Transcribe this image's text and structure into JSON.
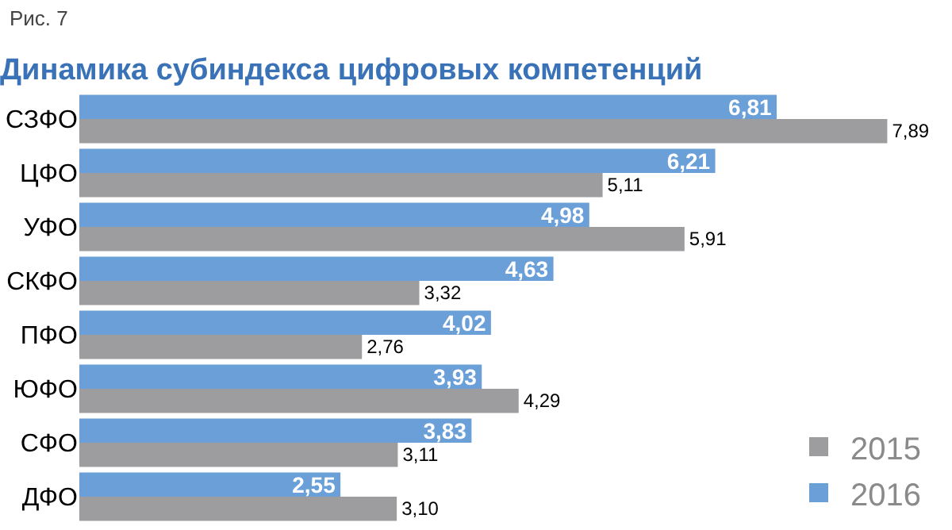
{
  "chart_data": {
    "type": "bar",
    "orientation": "horizontal",
    "title": "Динамика субиндекса цифровых компетенций",
    "annotations": [
      "Рис. 7"
    ],
    "categories": [
      "СЗФО",
      "ЦФО",
      "УФО",
      "СКФО",
      "ПФО",
      "ЮФО",
      "СФО",
      "ДФО"
    ],
    "series": [
      {
        "name": "2016",
        "color": "#6a9fd8",
        "values": [
          6.81,
          6.21,
          4.98,
          4.63,
          4.02,
          3.93,
          3.83,
          2.55
        ],
        "value_labels": [
          "6,81",
          "6,21",
          "4,98",
          "4,63",
          "4,02",
          "3,93",
          "3,83",
          "2,55"
        ]
      },
      {
        "name": "2015",
        "color": "#9d9d9f",
        "values": [
          7.89,
          5.11,
          5.91,
          3.32,
          2.76,
          4.29,
          3.11,
          3.1
        ],
        "value_labels": [
          "7,89",
          "5,11",
          "5,91",
          "3,32",
          "2,76",
          "4,29",
          "3,11",
          "3,10"
        ]
      }
    ],
    "tick_labels": "y",
    "legend": "bottom right"
  }
}
